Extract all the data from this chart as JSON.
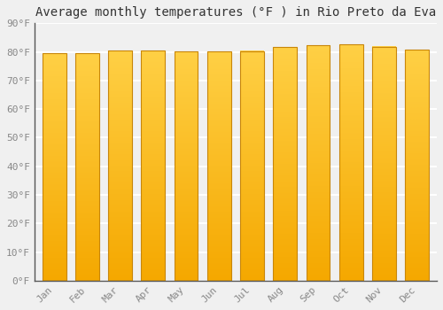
{
  "title": "Average monthly temperatures (°F ) in Rio Preto da Eva",
  "months": [
    "Jan",
    "Feb",
    "Mar",
    "Apr",
    "May",
    "Jun",
    "Jul",
    "Aug",
    "Sep",
    "Oct",
    "Nov",
    "Dec"
  ],
  "values": [
    79.5,
    79.5,
    80.5,
    80.5,
    80.2,
    80.1,
    80.3,
    81.7,
    82.4,
    82.6,
    81.8,
    80.8
  ],
  "bar_color_top": "#F5A800",
  "bar_color_bottom": "#FFD045",
  "ylim": [
    0,
    90
  ],
  "yticks": [
    0,
    10,
    20,
    30,
    40,
    50,
    60,
    70,
    80,
    90
  ],
  "ytick_labels": [
    "0°F",
    "10°F",
    "20°F",
    "30°F",
    "40°F",
    "50°F",
    "60°F",
    "70°F",
    "80°F",
    "90°F"
  ],
  "background_color": "#f0f0f0",
  "grid_color": "#ffffff",
  "title_fontsize": 10,
  "tick_fontsize": 8,
  "bar_outline_color": "#C8860A"
}
